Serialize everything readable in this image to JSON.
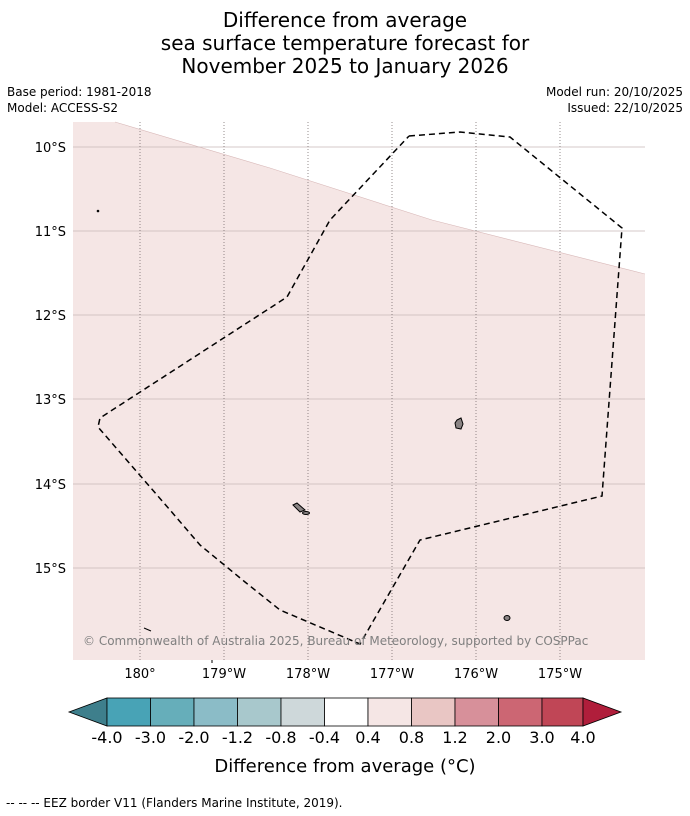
{
  "title": {
    "line1": "Difference from average",
    "line2": "sea surface temperature forecast for",
    "line3": "November 2025 to January 2026"
  },
  "meta": {
    "base_period": "Base period: 1981-2018",
    "model": "Model: ACCESS-S2",
    "model_run": "Model run: 20/10/2025",
    "issued": "Issued: 22/10/2025"
  },
  "map": {
    "lon_labels": [
      "180°",
      "179°W",
      "178°W",
      "177°W",
      "176°W",
      "175°W"
    ],
    "lat_labels": [
      "10°S",
      "11°S",
      "12°S",
      "13°S",
      "14°S",
      "15°S"
    ],
    "copyright": "© Commonwealth of Australia 2025, Bureau of Meteorology, supported by COSPPac",
    "fill_color": "#f5e6e5",
    "white_color": "#ffffff"
  },
  "colorbar": {
    "title": "Difference from average (°C)",
    "labels": [
      "-4.0",
      "-3.0",
      "-2.0",
      "-1.2",
      "-0.8",
      "-0.4",
      "0.4",
      "0.8",
      "1.2",
      "2.0",
      "3.0",
      "4.0"
    ],
    "colors": [
      "#3e7f8c",
      "#48a3b6",
      "#66aeba",
      "#8bbcc7",
      "#a8c8cc",
      "#ced8da",
      "#ffffff",
      "#f5e6e5",
      "#e9c6c4",
      "#d7909a",
      "#cc6673",
      "#c04656",
      "#b01e3b"
    ]
  },
  "footer": "--  --  -- EEZ border V11 (Flanders Marine Institute, 2019)."
}
